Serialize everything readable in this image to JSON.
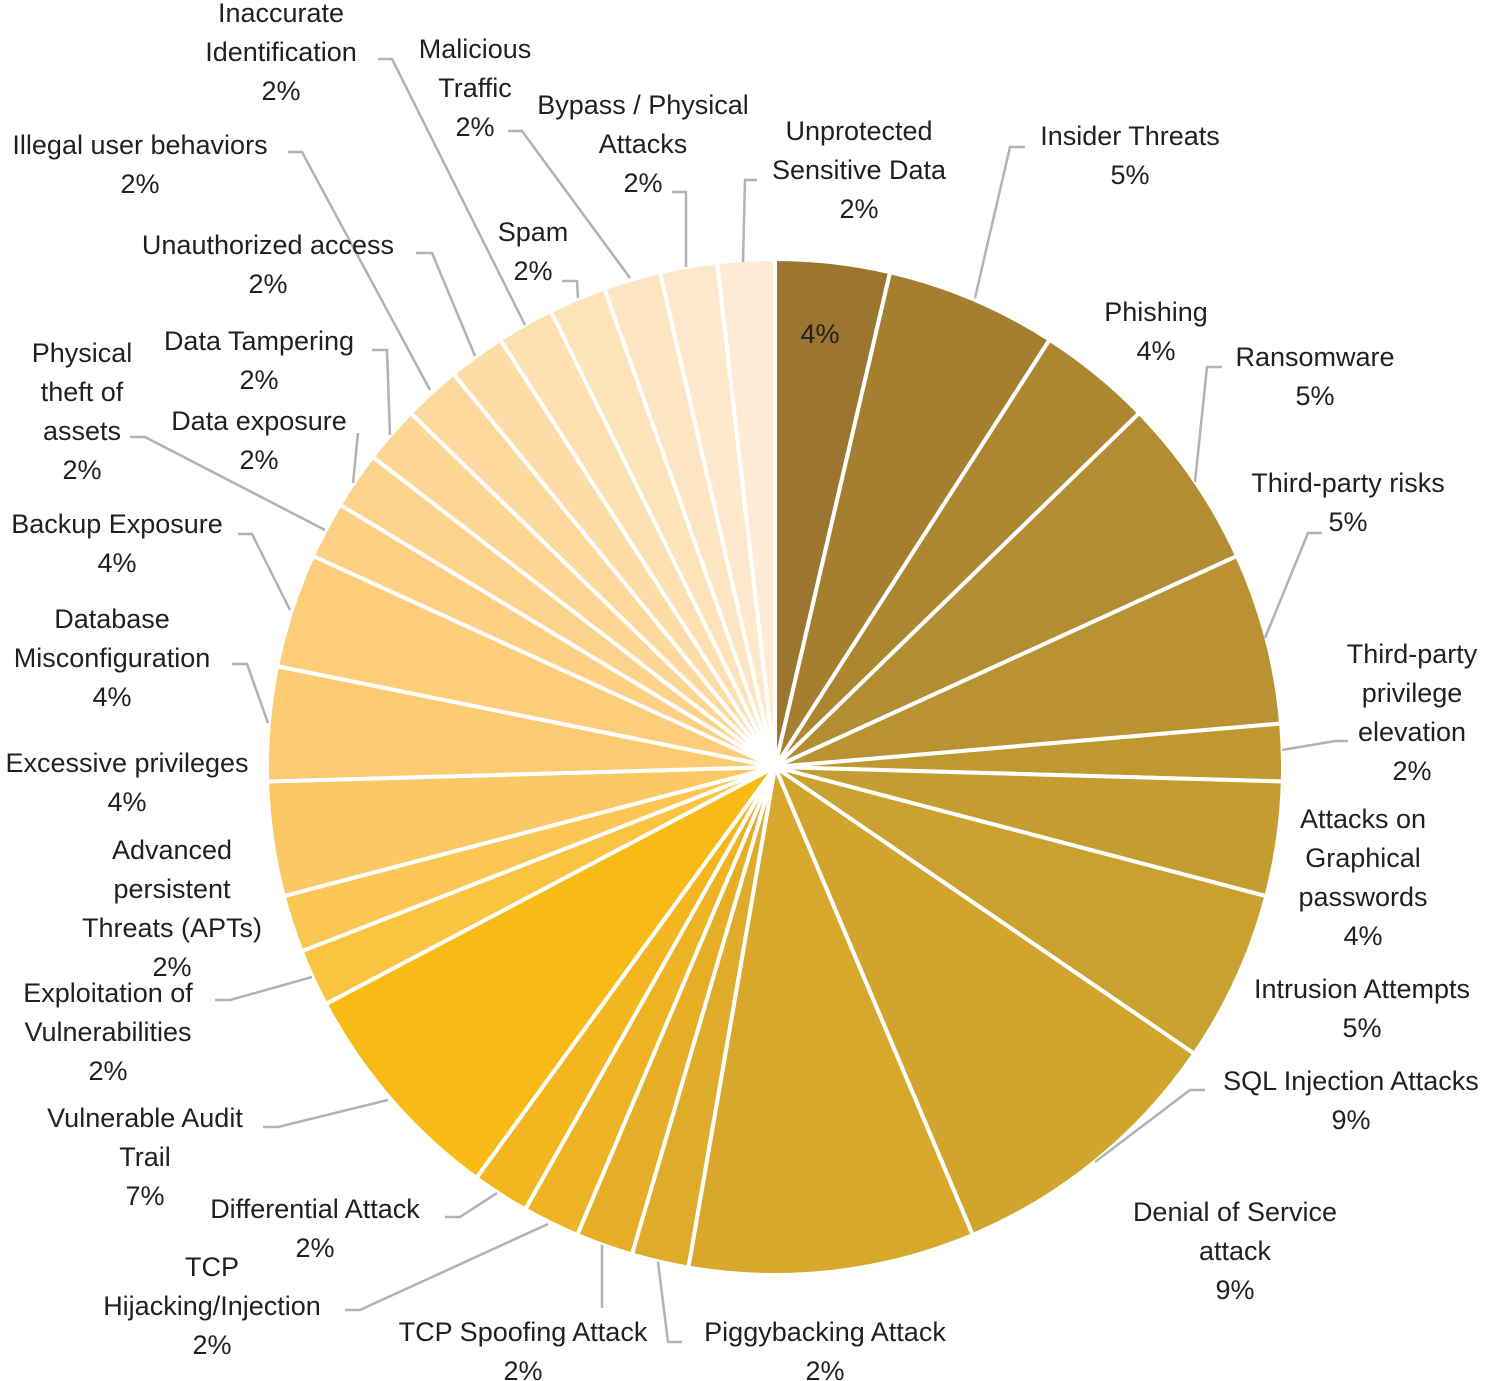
{
  "chart_data": {
    "type": "pie",
    "title": "",
    "start": "12 o'clock",
    "direction": "clockwise",
    "slices": [
      {
        "name": [
          "",
          ""
        ],
        "label": "4%",
        "value": 3.6,
        "color": "#9c7630"
      },
      {
        "name": [
          "Insider Threats"
        ],
        "label": "5%",
        "value": 5.4,
        "color": "#a57e30"
      },
      {
        "name": [
          "Phishing"
        ],
        "label": "4%",
        "value": 3.6,
        "color": "#ad8630"
      },
      {
        "name": [
          "Ransomware"
        ],
        "label": "5%",
        "value": 5.4,
        "color": "#b48c31"
      },
      {
        "name": [
          "Third-party risks"
        ],
        "label": "5%",
        "value": 5.4,
        "color": "#ba9231"
      },
      {
        "name": [
          "Third-party",
          "privilege",
          "elevation"
        ],
        "label": "2%",
        "value": 1.8,
        "color": "#bf9830"
      },
      {
        "name": [
          "Attacks on",
          "Graphical",
          "passwords"
        ],
        "label": "4%",
        "value": 3.6,
        "color": "#c49c30"
      },
      {
        "name": [
          "Intrusion Attempts"
        ],
        "label": "5%",
        "value": 5.4,
        "color": "#caa12e"
      },
      {
        "name": [
          "SQL Injection Attacks"
        ],
        "label": "9%",
        "value": 9.0,
        "color": "#d1a52d"
      },
      {
        "name": [
          "Denial of Service",
          "attack"
        ],
        "label": "9%",
        "value": 9.0,
        "color": "#d8a82c"
      },
      {
        "name": [
          "Piggybacking Attack"
        ],
        "label": "2%",
        "value": 1.8,
        "color": "#dfab2a"
      },
      {
        "name": [
          "TCP Spoofing Attack"
        ],
        "label": "2%",
        "value": 1.8,
        "color": "#e6ae26"
      },
      {
        "name": [
          "TCP",
          "Hijacking/Injection"
        ],
        "label": "2%",
        "value": 1.8,
        "color": "#edb322"
      },
      {
        "name": [
          "Differential Attack"
        ],
        "label": "2%",
        "value": 1.8,
        "color": "#f3b61e"
      },
      {
        "name": [
          "Vulnerable Audit",
          "Trail"
        ],
        "label": "7%",
        "value": 7.2,
        "color": "#f8bb15"
      },
      {
        "name": [
          "Exploitation of",
          "Vulnerabilities"
        ],
        "label": "2%",
        "value": 1.8,
        "color": "#fac441"
      },
      {
        "name": [
          "Advanced",
          "persistent",
          "Threats (APTs)"
        ],
        "label": "2%",
        "value": 1.8,
        "color": "#fbc654"
      },
      {
        "name": [
          "Excessive privileges"
        ],
        "label": "4%",
        "value": 3.6,
        "color": "#fcc865"
      },
      {
        "name": [
          "Database",
          "Misconfiguration"
        ],
        "label": "4%",
        "value": 3.6,
        "color": "#fccb71"
      },
      {
        "name": [
          "Backup Exposure"
        ],
        "label": "4%",
        "value": 3.6,
        "color": "#fdcd7a"
      },
      {
        "name": [
          "Physical",
          "theft of",
          "assets"
        ],
        "label": "2%",
        "value": 1.8,
        "color": "#fdd083"
      },
      {
        "name": [
          "Data exposure"
        ],
        "label": "2%",
        "value": 1.8,
        "color": "#fdd38b"
      },
      {
        "name": [
          "Data Tampering"
        ],
        "label": "2%",
        "value": 1.8,
        "color": "#fdd693"
      },
      {
        "name": [
          "Unauthorized access"
        ],
        "label": "2%",
        "value": 1.8,
        "color": "#fdd99d"
      },
      {
        "name": [
          "Illegal user behaviors"
        ],
        "label": "2%",
        "value": 1.8,
        "color": "#fedca6"
      },
      {
        "name": [
          "Inaccurate",
          "Identification"
        ],
        "label": "2%",
        "value": 1.8,
        "color": "#fedfaf"
      },
      {
        "name": [
          "Malicious",
          "Traffic"
        ],
        "label": "2%",
        "value": 1.8,
        "color": "#fee2b8"
      },
      {
        "name": [
          "Spam"
        ],
        "label": "2%",
        "value": 1.8,
        "color": "#fee5c1"
      },
      {
        "name": [
          "Bypass / Physical",
          "Attacks"
        ],
        "label": "2%",
        "value": 1.8,
        "color": "#fee8cb"
      },
      {
        "name": [
          "Unprotected",
          "Sensitive Data"
        ],
        "label": "2%",
        "value": 1.8,
        "color": "#feebd5"
      }
    ]
  }
}
